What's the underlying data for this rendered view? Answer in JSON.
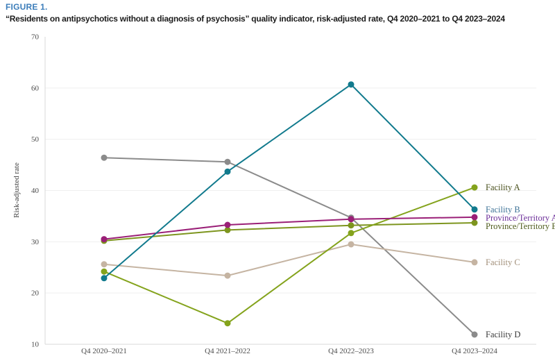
{
  "figure": {
    "label": "FIGURE 1.",
    "title": "“Residents on antipsychotics without a diagnosis of psychosis” quality indicator, risk-adjusted rate, Q4 2020–2021 to Q4 2023–2024"
  },
  "colors": {
    "figure_label": "#3b7dba",
    "title_text": "#1c1c1c",
    "axis_line": "#d9d9d9",
    "gridline": "#efefef",
    "tick_text": "#4a4a4a",
    "axis_title_text": "#3c3c3c"
  },
  "chart_data": {
    "type": "line",
    "title": "“Residents on antipsychotics without a diagnosis of psychosis” quality indicator, risk-adjusted rate, Q4 2020–2021 to Q4 2023–2024",
    "xlabel": "",
    "ylabel": "Risk-adjusted rate",
    "ylim": [
      10,
      70
    ],
    "yticks": [
      10,
      20,
      30,
      40,
      50,
      60,
      70
    ],
    "grid": "horizontal",
    "legend_position": "right-end-labels",
    "categories": [
      "Q4 2020–2021",
      "Q4 2021–2022",
      "Q4 2022–2023",
      "Q4 2023–2024"
    ],
    "series": [
      {
        "name": "Facility A",
        "color": "#84a31c",
        "label_color": "#4a511d",
        "values": [
          24.2,
          14.1,
          31.7,
          40.6
        ]
      },
      {
        "name": "Facility B",
        "color": "#117a8d",
        "label_color": "#3d7296",
        "values": [
          22.9,
          43.7,
          60.7,
          36.3
        ]
      },
      {
        "name": "Province/Territory A",
        "color": "#9a1f77",
        "label_color": "#6c2e99",
        "values": [
          30.5,
          33.3,
          34.4,
          34.8
        ]
      },
      {
        "name": "Province/Territory B",
        "color": "#7d951e",
        "label_color": "#4f5c1d",
        "values": [
          30.2,
          32.3,
          33.2,
          33.7
        ]
      },
      {
        "name": "Facility C",
        "color": "#c5b4a2",
        "label_color": "#a28f79",
        "values": [
          25.6,
          23.4,
          29.5,
          26.0
        ]
      },
      {
        "name": "Facility D",
        "color": "#8b8b8b",
        "label_color": "#3a3a3a",
        "values": [
          46.4,
          45.6,
          34.7,
          11.9
        ]
      }
    ]
  }
}
